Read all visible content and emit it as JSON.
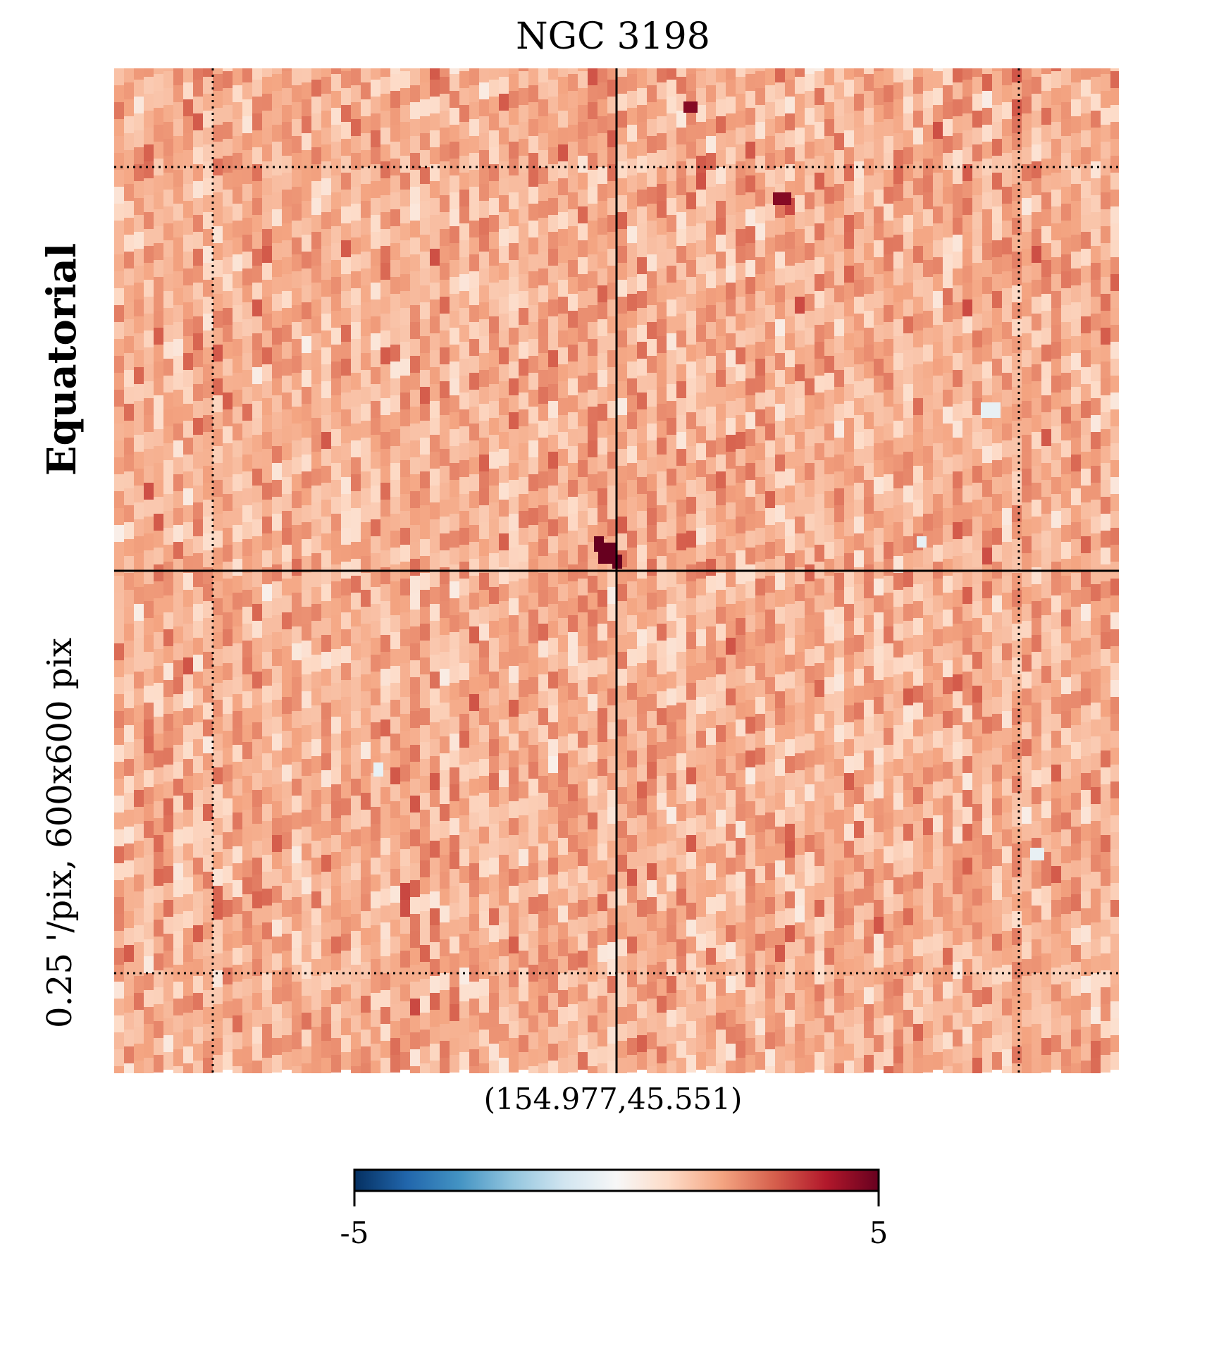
{
  "colors": {
    "cmap": [
      "#053061",
      "#2166ac",
      "#4393c3",
      "#92c5de",
      "#d1e5f0",
      "#f7f7f7",
      "#fddbc7",
      "#f4a582",
      "#d6604d",
      "#b2182b",
      "#67001f"
    ]
  },
  "chart_data": {
    "type": "heatmap",
    "title": "NGC 3198",
    "projection_label": "Equatorial",
    "resolution_label": "0.25 '/pix,   600x600 pix",
    "center_label": "(154.977,45.551)",
    "colorbar": {
      "min": -5,
      "max": 5,
      "min_label": "-5",
      "max_label": "5"
    },
    "grid": true,
    "typical_value": 1.8,
    "value_spread": 0.55,
    "notable_pixels": [
      {
        "role": "central-source",
        "value": 5
      },
      {
        "role": "upper-hotspot",
        "value": 4.6
      },
      {
        "role": "cold-spot",
        "value": -0.4
      }
    ]
  }
}
